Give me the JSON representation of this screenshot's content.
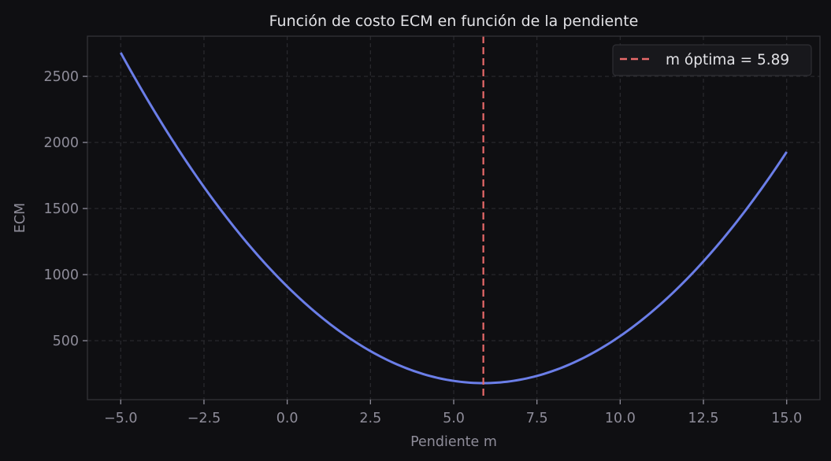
{
  "figure": {
    "background": "#0f0f12",
    "axes_background": "#0f0f12",
    "spine_color": "#333338",
    "grid_color": "#2a2a2f",
    "tick_label_color": "#8e8c99",
    "title_color": "#e2e2e6"
  },
  "chart_data": {
    "type": "line",
    "title": "Función de costo ECM en función de la pendiente",
    "xlabel": "Pendiente m",
    "ylabel": "ECM",
    "xlim": [
      -6.0,
      16.0
    ],
    "ylim": [
      54,
      2804
    ],
    "grid": true,
    "grid_style": "dashed",
    "xticks": [
      -5.0,
      -2.5,
      0.0,
      2.5,
      5.0,
      7.5,
      10.0,
      12.5,
      15.0
    ],
    "xtick_labels": [
      "−5.0",
      "−2.5",
      "0.0",
      "2.5",
      "5.0",
      "7.5",
      "10.0",
      "12.5",
      "15.0"
    ],
    "yticks": [
      500,
      1000,
      1500,
      2000,
      2500
    ],
    "ytick_labels": [
      "500",
      "1000",
      "1500",
      "2000",
      "2500"
    ],
    "series": [
      {
        "name": "ECM",
        "color": "#6b7ee8",
        "style": "solid",
        "x": [
          -5.0,
          -4.0,
          -3.0,
          -2.0,
          -1.0,
          0.0,
          1.0,
          2.0,
          3.0,
          4.0,
          5.0,
          5.89,
          7.0,
          8.0,
          9.0,
          10.0,
          11.0,
          12.0,
          13.0,
          14.0,
          15.0
        ],
        "y": [
          2679,
          2241,
          1845,
          1491,
          1179,
          910,
          683,
          498,
          355,
          254,
          196,
          179,
          205,
          273,
          383,
          535,
          730,
          966,
          1245,
          1566,
          1929
        ]
      }
    ],
    "vlines": [
      {
        "x": 5.89,
        "color": "#e86a6a",
        "style": "dashed",
        "label": "m óptima = 5.89"
      }
    ],
    "legend": {
      "position": "upper right",
      "entries": [
        {
          "label": "m óptima = 5.89",
          "color": "#e86a6a",
          "style": "dashed"
        }
      ]
    },
    "curve_model": {
      "a": 21.08,
      "m_opt": 5.89,
      "min_ecm": 179
    }
  }
}
